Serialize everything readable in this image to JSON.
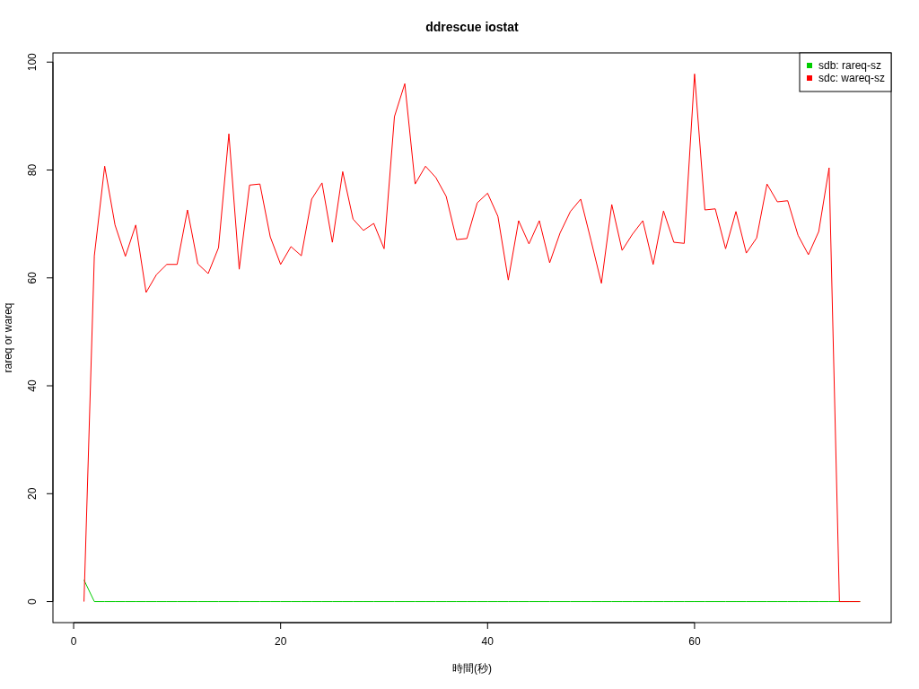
{
  "chart_data": {
    "type": "line",
    "title": "ddrescue iostat",
    "xlabel": "時間(秒)",
    "ylabel": "rareq or wareq",
    "x": [
      1,
      2,
      3,
      4,
      5,
      6,
      7,
      8,
      9,
      10,
      11,
      12,
      13,
      14,
      15,
      16,
      17,
      18,
      19,
      20,
      21,
      22,
      23,
      24,
      25,
      26,
      27,
      28,
      29,
      30,
      31,
      32,
      33,
      34,
      35,
      36,
      37,
      38,
      39,
      40,
      41,
      42,
      43,
      44,
      45,
      46,
      47,
      48,
      49,
      50,
      51,
      52,
      53,
      54,
      55,
      56,
      57,
      58,
      59,
      60,
      61,
      62,
      63,
      64,
      65,
      66,
      67,
      68,
      69,
      70,
      71,
      72,
      73,
      74,
      75,
      76
    ],
    "series": [
      {
        "name": "sdb: rareq-sz",
        "color": "#00cd00",
        "values": [
          4,
          0,
          0,
          0,
          0,
          0,
          0,
          0,
          0,
          0,
          0,
          0,
          0,
          0,
          0,
          0,
          0,
          0,
          0,
          0,
          0,
          0,
          0,
          0,
          0,
          0,
          0,
          0,
          0,
          0,
          0,
          0,
          0,
          0,
          0,
          0,
          0,
          0,
          0,
          0,
          0,
          0,
          0,
          0,
          0,
          0,
          0,
          0,
          0,
          0,
          0,
          0,
          0,
          0,
          0,
          0,
          0,
          0,
          0,
          0,
          0,
          0,
          0,
          0,
          0,
          0,
          0,
          0,
          0,
          0,
          0,
          0,
          0,
          0,
          0,
          0
        ]
      },
      {
        "name": "sdc: wareq-sz",
        "color": "#ff0000",
        "values": [
          0,
          64.1,
          80.7,
          69.8,
          64,
          69.8,
          57.3,
          60.6,
          62.5,
          62.5,
          72.6,
          62.6,
          60.8,
          65.6,
          86.7,
          61.6,
          77.2,
          77.4,
          67.6,
          62.5,
          65.8,
          64.1,
          74.6,
          77.6,
          66.6,
          79.7,
          70.9,
          68.8,
          70.1,
          65.4,
          89.9,
          96,
          77.4,
          80.7,
          78.6,
          75.1,
          67.1,
          67.3,
          73.9,
          75.7,
          71.4,
          59.6,
          70.6,
          66.3,
          70.6,
          62.8,
          68.3,
          72.3,
          74.6,
          66.9,
          59,
          73.6,
          65.1,
          68.1,
          70.6,
          62.5,
          72.4,
          66.6,
          66.4,
          97.8,
          72.6,
          72.8,
          65.4,
          72.3,
          64.6,
          67.4,
          77.4,
          74.1,
          74.3,
          67.9,
          64.3,
          68.6,
          80.4,
          0,
          0,
          0
        ]
      }
    ],
    "xlim": [
      -2,
      79
    ],
    "ylim": [
      -3.9,
      101.7
    ],
    "xticks": [
      0,
      20,
      40,
      60
    ],
    "yticks": [
      0,
      20,
      40,
      60,
      80,
      100
    ],
    "grid": false,
    "legend": "top right",
    "line_style": "solid"
  }
}
